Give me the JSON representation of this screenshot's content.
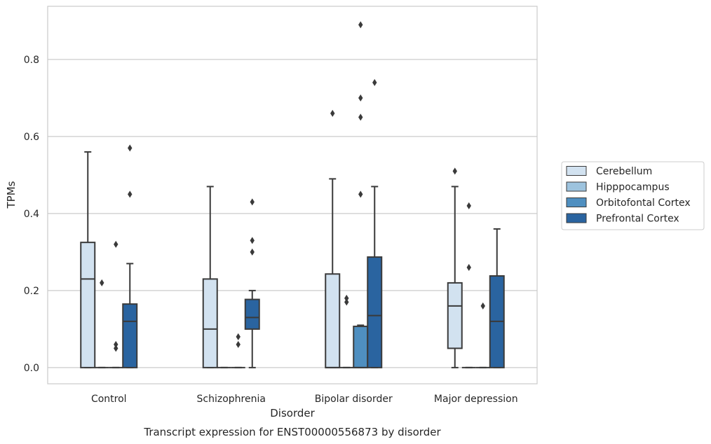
{
  "chart_data": {
    "type": "box",
    "xlabel": "Disorder",
    "ylabel": "TPMs",
    "caption": "Transcript expression for ENST00000556873 by disorder",
    "ylim": [
      -0.042,
      0.938
    ],
    "yticks": [
      "0.0",
      "0.2",
      "0.4",
      "0.6",
      "0.8"
    ],
    "ytick_values": [
      0.0,
      0.2,
      0.4,
      0.6,
      0.8
    ],
    "grid": "horizontal",
    "legend_position": "right",
    "categories": [
      "Control",
      "Schizophrenia",
      "Bipolar disorder",
      "Major depression"
    ],
    "series": [
      {
        "name": "Cerebellum",
        "color": "#d2e2f0",
        "boxes": [
          {
            "q1": 0.0,
            "median": 0.23,
            "q3": 0.325,
            "whisker_low": 0.0,
            "whisker_high": 0.56,
            "outliers": []
          },
          {
            "q1": 0.0,
            "median": 0.1,
            "q3": 0.23,
            "whisker_low": 0.0,
            "whisker_high": 0.47,
            "outliers": []
          },
          {
            "q1": 0.0,
            "median": 0.0,
            "q3": 0.243,
            "whisker_low": 0.0,
            "whisker_high": 0.49,
            "outliers": [
              0.66
            ]
          },
          {
            "q1": 0.05,
            "median": 0.16,
            "q3": 0.22,
            "whisker_low": 0.0,
            "whisker_high": 0.47,
            "outliers": [
              0.51
            ]
          }
        ]
      },
      {
        "name": "Hipppocampus",
        "color": "#9dc3de",
        "boxes": [
          {
            "q1": 0.0,
            "median": 0.0,
            "q3": 0.0,
            "whisker_low": 0.0,
            "whisker_high": 0.0,
            "outliers": [
              0.22
            ]
          },
          {
            "q1": 0.0,
            "median": 0.0,
            "q3": 0.0,
            "whisker_low": 0.0,
            "whisker_high": 0.0,
            "outliers": []
          },
          {
            "q1": 0.0,
            "median": 0.0,
            "q3": 0.0,
            "whisker_low": 0.0,
            "whisker_high": 0.0,
            "outliers": [
              0.18,
              0.17
            ]
          },
          {
            "q1": 0.0,
            "median": 0.0,
            "q3": 0.0,
            "whisker_low": 0.0,
            "whisker_high": 0.0,
            "outliers": [
              0.42,
              0.26
            ]
          }
        ]
      },
      {
        "name": "Orbitofontal Cortex",
        "color": "#4f8fc0",
        "boxes": [
          {
            "q1": 0.0,
            "median": 0.0,
            "q3": 0.0,
            "whisker_low": 0.0,
            "whisker_high": 0.0,
            "outliers": [
              0.32,
              0.06,
              0.05
            ]
          },
          {
            "q1": 0.0,
            "median": 0.0,
            "q3": 0.0,
            "whisker_low": 0.0,
            "whisker_high": 0.0,
            "outliers": [
              0.08,
              0.06
            ]
          },
          {
            "q1": 0.0,
            "median": 0.0,
            "q3": 0.107,
            "whisker_low": 0.0,
            "whisker_high": 0.11,
            "outliers": [
              0.89,
              0.7,
              0.65,
              0.45
            ]
          },
          {
            "q1": 0.0,
            "median": 0.0,
            "q3": 0.0,
            "whisker_low": 0.0,
            "whisker_high": 0.0,
            "outliers": [
              0.16
            ]
          }
        ]
      },
      {
        "name": "Prefrontal Cortex",
        "color": "#2a64a0",
        "boxes": [
          {
            "q1": 0.0,
            "median": 0.12,
            "q3": 0.165,
            "whisker_low": 0.0,
            "whisker_high": 0.27,
            "outliers": [
              0.57,
              0.45
            ]
          },
          {
            "q1": 0.1,
            "median": 0.13,
            "q3": 0.177,
            "whisker_low": 0.0,
            "whisker_high": 0.2,
            "outliers": [
              0.43,
              0.33,
              0.3
            ]
          },
          {
            "q1": 0.0,
            "median": 0.135,
            "q3": 0.287,
            "whisker_low": 0.0,
            "whisker_high": 0.47,
            "outliers": [
              0.74
            ]
          },
          {
            "q1": 0.0,
            "median": 0.12,
            "q3": 0.238,
            "whisker_low": 0.0,
            "whisker_high": 0.36,
            "outliers": []
          }
        ]
      }
    ]
  }
}
